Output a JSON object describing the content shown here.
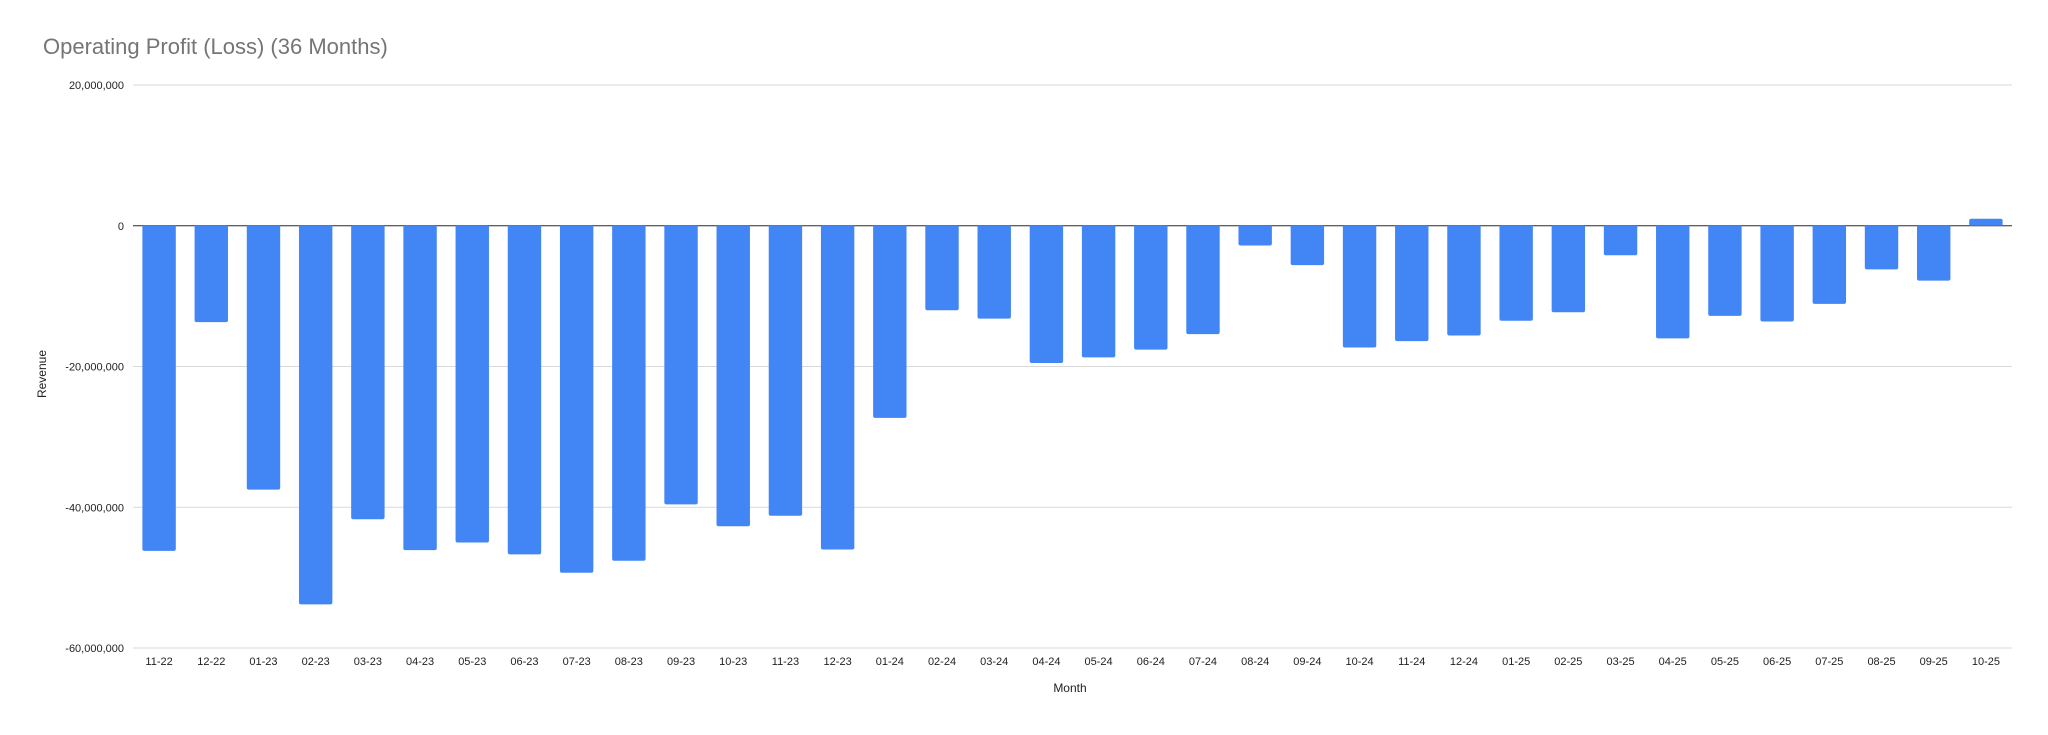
{
  "chart_data": {
    "type": "bar",
    "title": "Operating Profit (Loss) (36 Months)",
    "xlabel": "Month",
    "ylabel": "Revenue",
    "ylim": [
      -60000000,
      20000000
    ],
    "yticks": [
      20000000,
      0,
      -20000000,
      -40000000,
      -60000000
    ],
    "ytick_labels": [
      "20,000,000",
      "0",
      "-20,000,000",
      "-40,000,000",
      "-60,000,000"
    ],
    "grid": true,
    "legend": "none",
    "bar_color": "#4285f4",
    "categories": [
      "11-22",
      "12-22",
      "01-23",
      "02-23",
      "03-23",
      "04-23",
      "05-23",
      "06-23",
      "07-23",
      "08-23",
      "09-23",
      "10-23",
      "11-23",
      "12-23",
      "01-24",
      "02-24",
      "03-24",
      "04-24",
      "05-24",
      "06-24",
      "07-24",
      "08-24",
      "09-24",
      "10-24",
      "11-24",
      "12-24",
      "01-25",
      "02-25",
      "03-25",
      "04-25",
      "05-25",
      "06-25",
      "07-25",
      "08-25",
      "09-25",
      "10-25"
    ],
    "series": [
      {
        "values": [
          -46200000,
          -13700000,
          -37500000,
          -53800000,
          -41700000,
          -46100000,
          -45000000,
          -46700000,
          -49300000,
          -47600000,
          -39600000,
          -42700000,
          -41200000,
          -46000000,
          -27300000,
          -12000000,
          -13200000,
          -19500000,
          -18700000,
          -17600000,
          -15400000,
          -2800000,
          -5600000,
          -17300000,
          -16400000,
          -15600000,
          -13500000,
          -12300000,
          -4200000,
          -16000000,
          -12800000,
          -13600000,
          -11100000,
          -6200000,
          -7800000,
          1000000
        ]
      }
    ]
  }
}
